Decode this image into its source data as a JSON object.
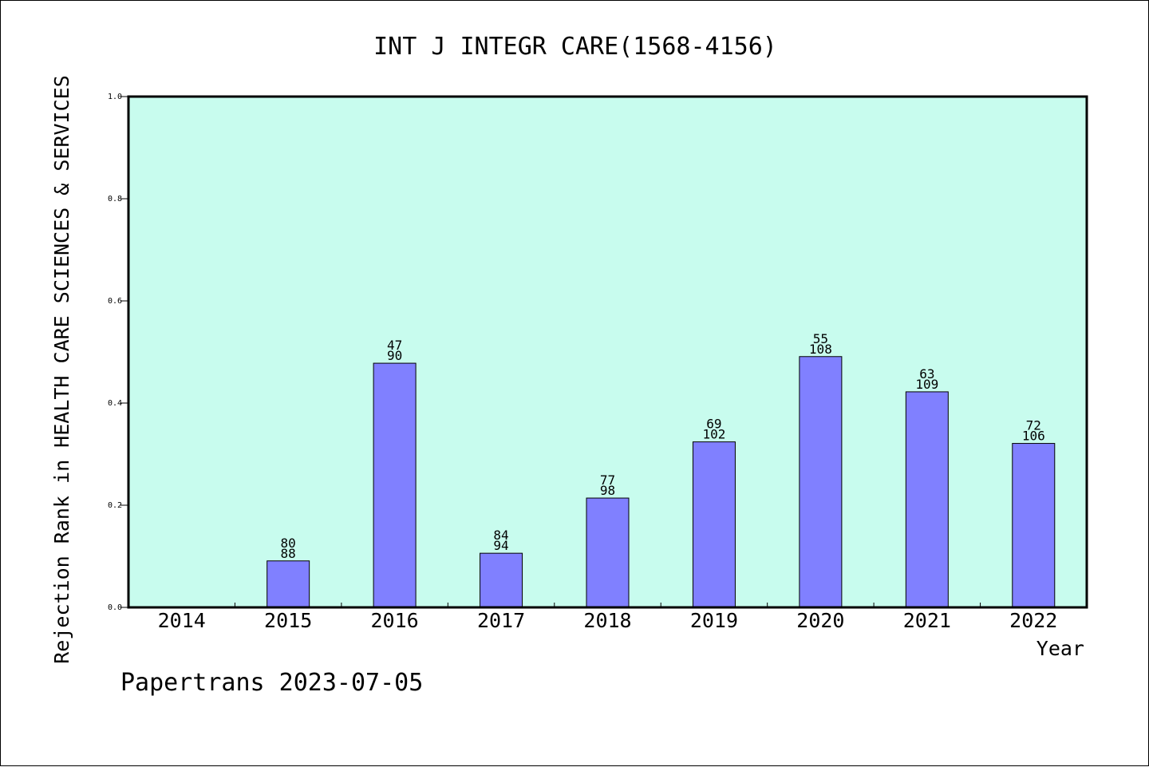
{
  "chart_data": {
    "type": "bar",
    "title": "INT J INTEGR CARE(1568-4156)",
    "xlabel": "Year",
    "ylabel": "Rejection Rank in HEALTH CARE SCIENCES & SERVICES",
    "categories": [
      "2014",
      "2015",
      "2016",
      "2017",
      "2018",
      "2019",
      "2020",
      "2021",
      "2022"
    ],
    "values": [
      null,
      0.091,
      0.478,
      0.106,
      0.214,
      0.324,
      0.491,
      0.422,
      0.321
    ],
    "labels_top": [
      "",
      "80",
      "47",
      "84",
      "77",
      "69",
      "55",
      "63",
      "72"
    ],
    "labels_bottom": [
      "",
      "88",
      "90",
      "94",
      "98",
      "102",
      "108",
      "109",
      "106"
    ],
    "ylim": [
      0,
      1.0
    ],
    "yticks": [
      "0.0",
      "0.2",
      "0.4",
      "0.6",
      "0.8",
      "1.0"
    ],
    "grid": false,
    "colors": {
      "plot_background": "#c8fcee",
      "bar_fill": "#8080ff",
      "bar_stroke": "#000000"
    }
  },
  "footer": {
    "text": "Papertrans 2023-07-05"
  }
}
